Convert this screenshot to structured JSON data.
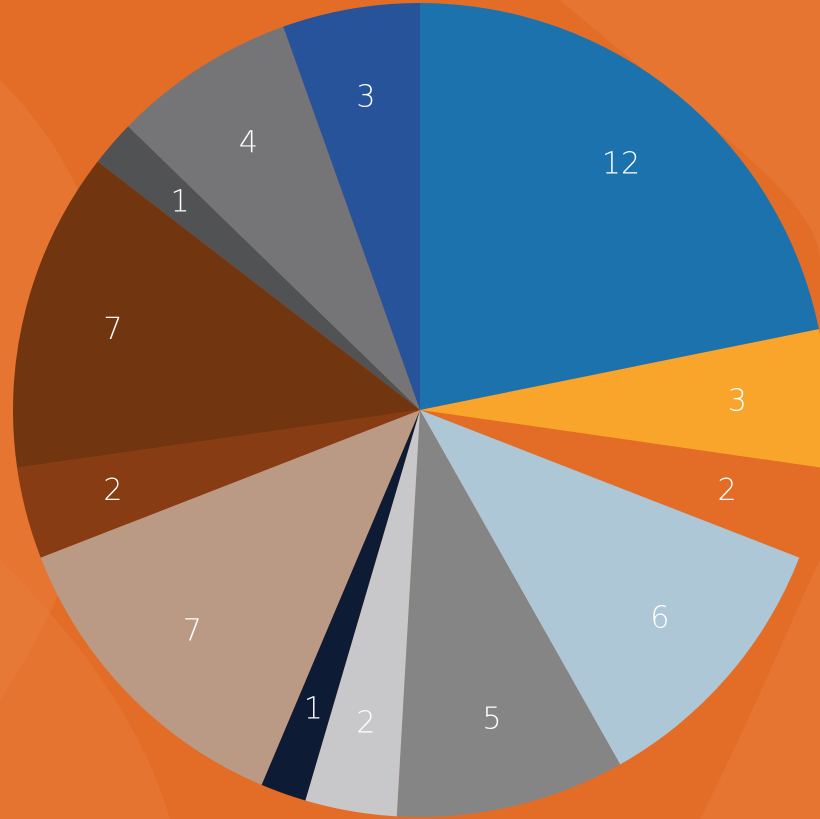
{
  "background_color": "#e36d27",
  "chart_data": {
    "type": "pie",
    "title": "",
    "start_angle_deg": 0,
    "direction": "clockwise",
    "slices": [
      {
        "value": 12,
        "label": "12",
        "color": "#1b72ad"
      },
      {
        "value": 3,
        "label": "3",
        "color": "#f9a42b"
      },
      {
        "value": 2,
        "label": "2",
        "color": "#e36d27"
      },
      {
        "value": 6,
        "label": "6",
        "color": "#adc7d6"
      },
      {
        "value": 5,
        "label": "5",
        "color": "#858585"
      },
      {
        "value": 2,
        "label": "2",
        "color": "#c8c8ca"
      },
      {
        "value": 1,
        "label": "1",
        "color": "#0e1b34"
      },
      {
        "value": 7,
        "label": "7",
        "color": "#bb9a85"
      },
      {
        "value": 2,
        "label": "2",
        "color": "#873c13"
      },
      {
        "value": 7,
        "label": "7",
        "color": "#713510"
      },
      {
        "value": 1,
        "label": "1",
        "color": "#515253"
      },
      {
        "value": 4,
        "label": "4",
        "color": "#757578"
      },
      {
        "value": 3,
        "label": "3",
        "color": "#27539a"
      }
    ]
  }
}
